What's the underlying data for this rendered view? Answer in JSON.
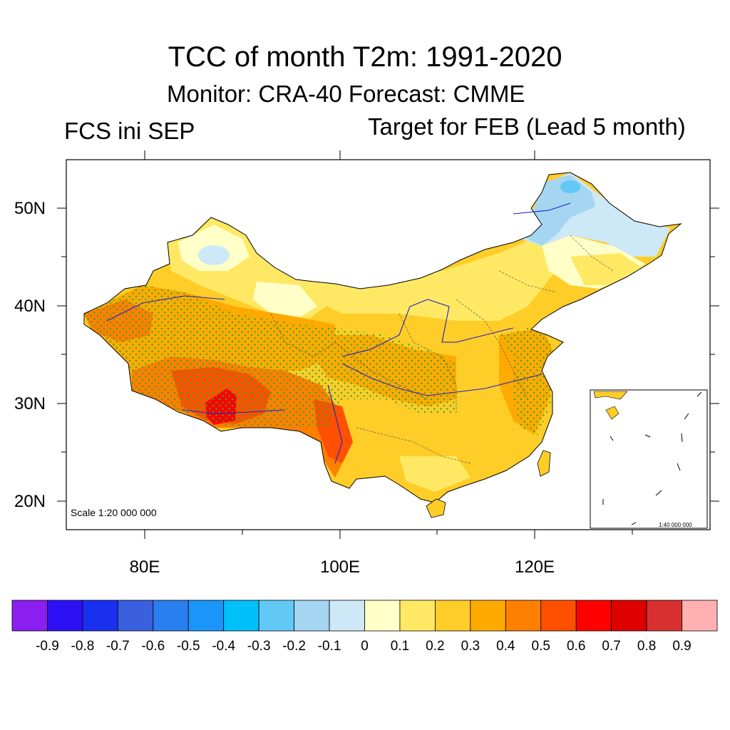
{
  "title": "TCC of month T2m: 1991-2020",
  "subtitle": "Monitor: CRA-40   Forecast: CMME",
  "left_label": "FCS ini SEP",
  "right_label": "Target for FEB (Lead 5 month)",
  "scale_note": "Scale 1:20 000 000",
  "inset_scale_note": "1:40 000 000",
  "axes": {
    "lat_labels": [
      "50N",
      "40N",
      "30N",
      "20N"
    ],
    "lon_labels": [
      "80E",
      "100E",
      "120E"
    ],
    "lat_range": [
      17,
      55
    ],
    "lon_range": [
      72,
      138
    ]
  },
  "colorbar": {
    "labels": [
      "-0.9",
      "-0.8",
      "-0.7",
      "-0.6",
      "-0.5",
      "-0.4",
      "-0.3",
      "-0.2",
      "-0.1",
      "0",
      "0.1",
      "0.2",
      "0.3",
      "0.4",
      "0.5",
      "0.6",
      "0.7",
      "0.8",
      "0.9"
    ],
    "colors": [
      "#8a1ff0",
      "#2e10f5",
      "#1a30f0",
      "#3a60e0",
      "#2a7ff0",
      "#1a96fa",
      "#00c0fa",
      "#62c8f5",
      "#a4d6f2",
      "#cde8f7",
      "#ffffc8",
      "#ffe964",
      "#ffcd28",
      "#ffaa00",
      "#ff7f00",
      "#ff5000",
      "#ff0000",
      "#dc0000",
      "#d83030",
      "#ffb0b0"
    ]
  },
  "legend_note": "green dots mark significant regions"
}
